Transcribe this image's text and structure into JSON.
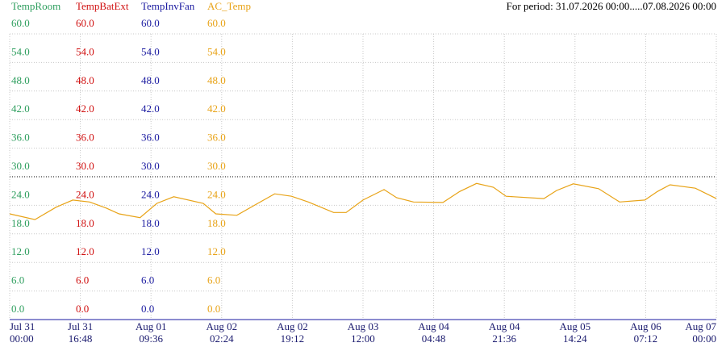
{
  "chart_data": {
    "type": "line",
    "title": "For period: 31.07.2026 00:00.....07.08.2026 00:00",
    "xlim": [
      "2026-07-31 00:00",
      "2026-08-07 00:00"
    ],
    "xticks": [
      {
        "value": "2026-07-31 00:00",
        "label": "Jul 31\n00:00"
      },
      {
        "value": "2026-07-31 16:48",
        "label": "Jul 31\n16:48"
      },
      {
        "value": "2026-08-01 09:36",
        "label": "Aug 01\n09:36"
      },
      {
        "value": "2026-08-02 02:24",
        "label": "Aug 02\n02:24"
      },
      {
        "value": "2026-08-02 19:12",
        "label": "Aug 02\n19:12"
      },
      {
        "value": "2026-08-03 12:00",
        "label": "Aug 03\n12:00"
      },
      {
        "value": "2026-08-04 04:48",
        "label": "Aug 04\n04:48"
      },
      {
        "value": "2026-08-04 21:36",
        "label": "Aug 04\n21:36"
      },
      {
        "value": "2026-08-05 14:24",
        "label": "Aug 05\n14:24"
      },
      {
        "value": "2026-08-06 07:12",
        "label": "Aug 06\n07:12"
      },
      {
        "value": "2026-08-07 00:00",
        "label": "Aug 07\n00:00"
      }
    ],
    "grid": true,
    "reference_line": 30,
    "x": [
      "2026-07-31 00:00",
      "2026-07-31 06:00",
      "2026-07-31 11:00",
      "2026-07-31 15:00",
      "2026-07-31 19:00",
      "2026-07-31 23:00",
      "2026-08-01 02:00",
      "2026-08-01 07:00",
      "2026-08-01 11:00",
      "2026-08-01 15:00",
      "2026-08-01 22:00",
      "2026-08-02 01:00",
      "2026-08-02 06:00",
      "2026-08-02 11:00",
      "2026-08-02 15:00",
      "2026-08-02 19:00",
      "2026-08-02 23:00",
      "2026-08-03 05:00",
      "2026-08-03 08:00",
      "2026-08-03 12:00",
      "2026-08-03 17:00",
      "2026-08-03 20:00",
      "2026-08-04 00:00",
      "2026-08-04 07:00",
      "2026-08-04 11:00",
      "2026-08-04 15:00",
      "2026-08-04 19:00",
      "2026-08-04 22:00",
      "2026-08-05 07:00",
      "2026-08-05 10:00",
      "2026-08-05 14:00",
      "2026-08-05 20:00",
      "2026-08-06 01:00",
      "2026-08-06 07:00",
      "2026-08-06 10:00",
      "2026-08-06 13:00",
      "2026-08-06 19:00",
      "2026-08-07 00:00"
    ],
    "series": [
      {
        "name": "TempRoom",
        "color": "#2e9e5e",
        "ylim": [
          0,
          60
        ],
        "yticks": [
          {
            "value": 0,
            "label": "0.0"
          },
          {
            "value": 6,
            "label": "6.0"
          },
          {
            "value": 12,
            "label": "12.0"
          },
          {
            "value": 18,
            "label": "18.0"
          },
          {
            "value": 24,
            "label": "24.0"
          },
          {
            "value": 30,
            "label": "30.0"
          },
          {
            "value": 36,
            "label": "36.0"
          },
          {
            "value": 42,
            "label": "42.0"
          },
          {
            "value": 48,
            "label": "48.0"
          },
          {
            "value": 54,
            "label": "54.0"
          },
          {
            "value": 60,
            "label": "60.0"
          }
        ],
        "values": [
          null,
          null,
          null,
          null,
          null,
          null,
          null,
          null,
          null,
          null,
          null,
          null,
          null,
          null,
          null,
          null,
          null,
          null,
          null,
          null,
          null,
          null,
          null,
          null,
          null,
          null,
          null,
          null,
          null,
          null,
          null,
          null,
          null,
          null,
          null,
          null,
          null,
          null
        ]
      },
      {
        "name": "TempBatExt",
        "color": "#d01010",
        "ylim": [
          0,
          60
        ],
        "yticks": [
          {
            "value": 0,
            "label": "0.0"
          },
          {
            "value": 6,
            "label": "6.0"
          },
          {
            "value": 12,
            "label": "12.0"
          },
          {
            "value": 18,
            "label": "18.0"
          },
          {
            "value": 24,
            "label": "24.0"
          },
          {
            "value": 30,
            "label": "30.0"
          },
          {
            "value": 36,
            "label": "36.0"
          },
          {
            "value": 42,
            "label": "42.0"
          },
          {
            "value": 48,
            "label": "48.0"
          },
          {
            "value": 54,
            "label": "54.0"
          },
          {
            "value": 60,
            "label": "60.0"
          }
        ],
        "values": [
          null,
          null,
          null,
          null,
          null,
          null,
          null,
          null,
          null,
          null,
          null,
          null,
          null,
          null,
          null,
          null,
          null,
          null,
          null,
          null,
          null,
          null,
          null,
          null,
          null,
          null,
          null,
          null,
          null,
          null,
          null,
          null,
          null,
          null,
          null,
          null,
          null,
          null
        ]
      },
      {
        "name": "TempInvFan",
        "color": "#1a1aa0",
        "ylim": [
          0,
          60
        ],
        "yticks": [
          {
            "value": 0,
            "label": "0.0"
          },
          {
            "value": 6,
            "label": "6.0"
          },
          {
            "value": 12,
            "label": "12.0"
          },
          {
            "value": 18,
            "label": "18.0"
          },
          {
            "value": 24,
            "label": "24.0"
          },
          {
            "value": 30,
            "label": "30.0"
          },
          {
            "value": 36,
            "label": "36.0"
          },
          {
            "value": 42,
            "label": "42.0"
          },
          {
            "value": 48,
            "label": "48.0"
          },
          {
            "value": 54,
            "label": "54.0"
          },
          {
            "value": 60,
            "label": "60.0"
          }
        ],
        "values": [
          null,
          null,
          null,
          null,
          null,
          null,
          null,
          null,
          null,
          null,
          null,
          null,
          null,
          null,
          null,
          null,
          null,
          null,
          null,
          null,
          null,
          null,
          null,
          null,
          null,
          null,
          null,
          null,
          null,
          null,
          null,
          null,
          null,
          null,
          null,
          null,
          null,
          null
        ]
      },
      {
        "name": "AC_Temp",
        "color": "#e8a317",
        "ylim": [
          0,
          60
        ],
        "yticks": [
          {
            "value": 0,
            "label": "0.0"
          },
          {
            "value": 6,
            "label": "6.0"
          },
          {
            "value": 12,
            "label": "12.0"
          },
          {
            "value": 18,
            "label": "18.0"
          },
          {
            "value": 24,
            "label": "24.0"
          },
          {
            "value": 30,
            "label": "30.0"
          },
          {
            "value": 36,
            "label": "36.0"
          },
          {
            "value": 42,
            "label": "42.0"
          },
          {
            "value": 48,
            "label": "48.0"
          },
          {
            "value": 54,
            "label": "54.0"
          },
          {
            "value": 60,
            "label": "60.0"
          }
        ],
        "values": [
          22.2,
          21.0,
          23.6,
          25.1,
          24.7,
          23.4,
          22.2,
          21.4,
          24.4,
          25.8,
          24.4,
          22.2,
          21.9,
          24.4,
          26.4,
          25.9,
          24.7,
          22.5,
          22.5,
          25.1,
          27.3,
          25.6,
          24.7,
          24.6,
          26.9,
          28.6,
          27.8,
          25.9,
          25.4,
          27.1,
          28.5,
          27.5,
          24.7,
          25.1,
          26.9,
          28.3,
          27.6,
          25.4
        ]
      }
    ]
  }
}
